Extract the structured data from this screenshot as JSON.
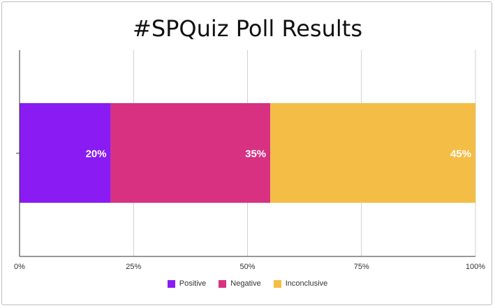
{
  "chart_data": {
    "type": "bar",
    "orientation": "horizontal",
    "stacked": true,
    "title": "#SPQuiz Poll Results",
    "xlim": [
      0,
      100
    ],
    "x_ticks": [
      "0%",
      "25%",
      "50%",
      "75%",
      "100%"
    ],
    "x_tick_values": [
      0,
      25,
      50,
      75,
      100
    ],
    "grid": true,
    "legend_position": "bottom",
    "series": [
      {
        "name": "Positive",
        "value": 20,
        "label": "20%",
        "color": "#8a1bf2"
      },
      {
        "name": "Negative",
        "value": 35,
        "label": "35%",
        "color": "#d83182"
      },
      {
        "name": "Inconclusive",
        "value": 45,
        "label": "45%",
        "color": "#f4bd45"
      }
    ]
  }
}
